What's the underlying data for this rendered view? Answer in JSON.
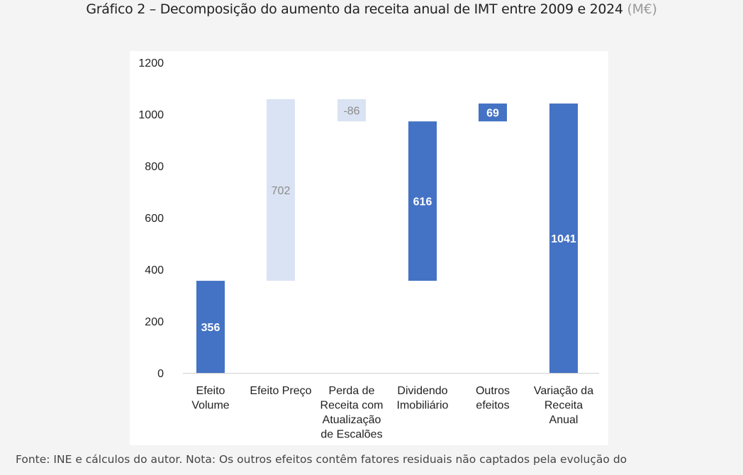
{
  "title": "Gráfico 2 – Decomposição do aumento da receita anual de IMT entre 2009 e 2024",
  "title_unit": "(M€)",
  "footer": "Fonte: INE e cálculos do autor. Nota: Os outros efeitos contêm fatores residuais não captados pela evolução do",
  "chart_data": {
    "type": "bar",
    "subtype": "waterfall",
    "ylim": [
      0,
      1200
    ],
    "yticks": [
      0,
      200,
      400,
      600,
      800,
      1000,
      1200
    ],
    "grid": false,
    "categories": [
      [
        "Efeito",
        "Volume"
      ],
      [
        "Efeito Preço"
      ],
      [
        "Perda de",
        "Receita com",
        "Atualização",
        "de Escalões"
      ],
      [
        "Dividendo",
        "Imobiliário"
      ],
      [
        "Outros",
        "efeitos"
      ],
      [
        "Variação da",
        "Receita",
        "Anual"
      ]
    ],
    "values": [
      356,
      702,
      -86,
      616,
      69,
      1041
    ],
    "bar_ranges": [
      [
        0,
        356
      ],
      [
        356,
        1058
      ],
      [
        972,
        1058
      ],
      [
        356,
        972
      ],
      [
        972,
        1041
      ],
      [
        0,
        1041
      ]
    ],
    "labels": [
      "356",
      "702",
      "-86",
      "616",
      "69",
      "1041"
    ],
    "styles": [
      "dark",
      "light",
      "light",
      "dark",
      "dark",
      "dark"
    ],
    "colors": {
      "dark": "#4472c4",
      "light": "#dae3f3",
      "dark_label": "#ffffff",
      "light_label": "#8c8c8c"
    }
  }
}
